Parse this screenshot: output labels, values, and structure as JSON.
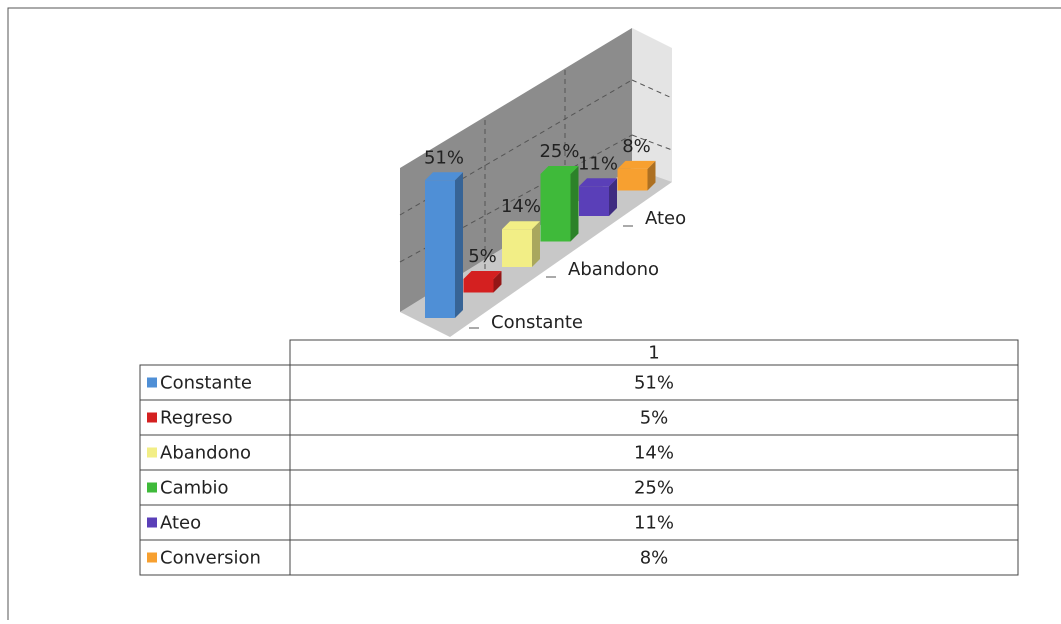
{
  "chart_data": {
    "type": "bar3d",
    "categories": [
      "1"
    ],
    "series": [
      {
        "name": "Constante",
        "color": "#4f8fd6",
        "values": [
          51
        ],
        "value_labels": [
          "51%"
        ]
      },
      {
        "name": "Regreso",
        "color": "#d42020",
        "values": [
          5
        ],
        "value_labels": [
          "5%"
        ]
      },
      {
        "name": "Abandono",
        "color": "#f2ee86",
        "values": [
          14
        ],
        "value_labels": [
          "14%"
        ]
      },
      {
        "name": "Cambio",
        "color": "#3fba3a",
        "values": [
          25
        ],
        "value_labels": [
          "25%"
        ]
      },
      {
        "name": "Ateo",
        "color": "#5a3fb8",
        "values": [
          11
        ],
        "value_labels": [
          "11%"
        ]
      },
      {
        "name": "Conversion",
        "color": "#f7a030",
        "values": [
          8
        ],
        "value_labels": [
          "8%"
        ]
      }
    ]
  }
}
